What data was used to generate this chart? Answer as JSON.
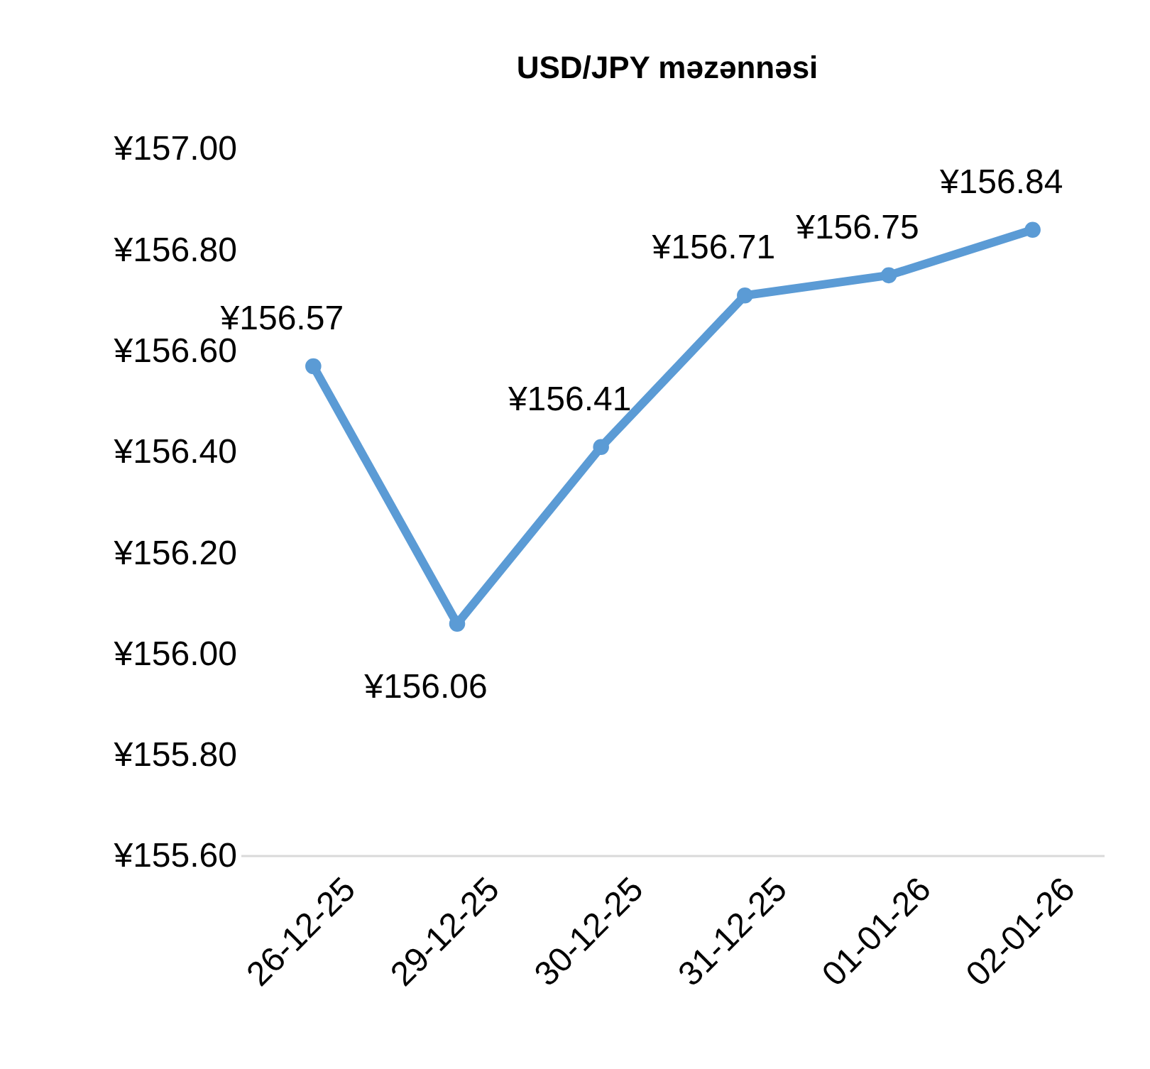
{
  "chart_data": {
    "type": "line",
    "title": "USD/JPY məzənnəsi",
    "categories": [
      "26-12-25",
      "29-12-25",
      "30-12-25",
      "31-12-25",
      "01-01-26",
      "02-01-26"
    ],
    "series": [
      {
        "color": "#5b9bd5",
        "values": [
          156.57,
          156.06,
          156.41,
          156.71,
          156.75,
          156.84
        ],
        "value_labels": [
          "¥156.57",
          "¥156.06",
          "¥156.41",
          "¥156.71",
          "¥156.75",
          "¥156.84"
        ]
      }
    ],
    "ylim": [
      155.6,
      157.0
    ],
    "yticks": [
      {
        "value": 155.6,
        "label": "¥155.60"
      },
      {
        "value": 155.8,
        "label": "¥155.80"
      },
      {
        "value": 156.0,
        "label": "¥156.00"
      },
      {
        "value": 156.2,
        "label": "¥156.20"
      },
      {
        "value": 156.4,
        "label": "¥156.40"
      },
      {
        "value": 156.6,
        "label": "¥156.60"
      },
      {
        "value": 156.8,
        "label": "¥156.80"
      },
      {
        "value": 157.0,
        "label": "¥157.00"
      }
    ],
    "grid": false,
    "marker": "circle",
    "line_style": "solid"
  }
}
